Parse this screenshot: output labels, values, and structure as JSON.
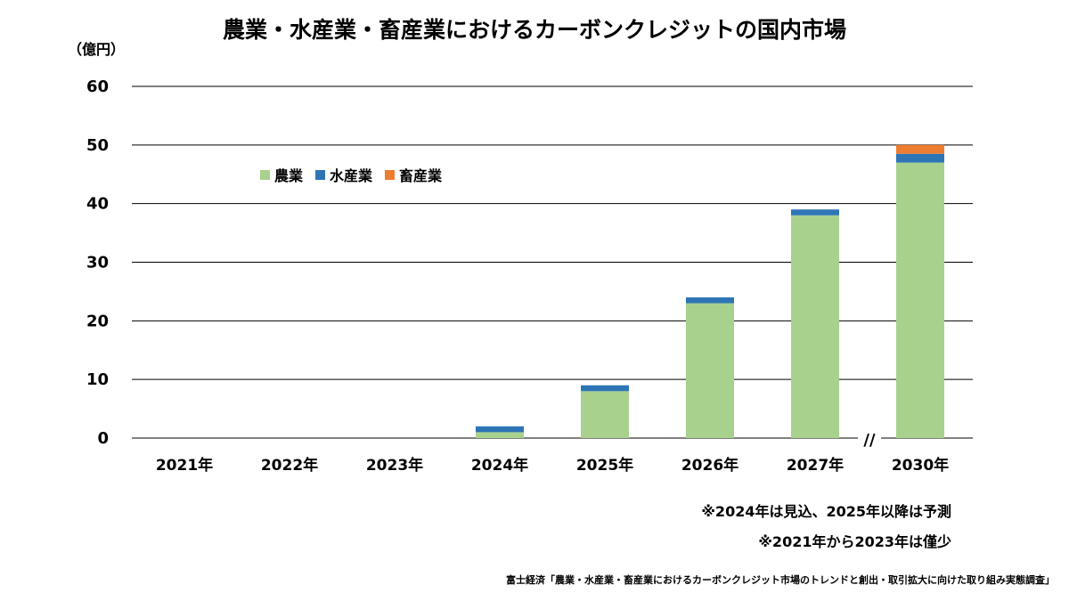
{
  "title": "農業・水産業・畜産業におけるカーボンクレジットの国内市場",
  "unit_label": "（億円）",
  "notes": [
    "※2024年は見込、2025年以降は予測",
    "※2021年から2023年は僅少"
  ],
  "source": "富士経済「農業・水産業・畜産業におけるカーボンクレジット市場のトレンドと創出・取引拡大に向けた取り組み実態調査」",
  "axis_break_mark": "//",
  "chart_data": {
    "type": "bar",
    "stacked": true,
    "title": "農業・水産業・畜産業におけるカーボンクレジットの国内市場",
    "ylabel": "（億円）",
    "xlabel": "",
    "categories": [
      "2021年",
      "2022年",
      "2023年",
      "2024年",
      "2025年",
      "2026年",
      "2027年",
      "2030年"
    ],
    "ylim": [
      0,
      60
    ],
    "yticks": [
      0,
      10,
      20,
      30,
      40,
      50,
      60
    ],
    "grid": true,
    "legend_position": "upper-left",
    "series": [
      {
        "name": "農業",
        "color": "#A9D18E",
        "values": [
          0,
          0,
          0,
          1,
          8,
          23,
          38,
          47
        ]
      },
      {
        "name": "水産業",
        "color": "#2E75B6",
        "values": [
          0,
          0,
          0,
          1,
          1,
          1,
          1,
          1.5
        ]
      },
      {
        "name": "畜産業",
        "color": "#ED7D31",
        "values": [
          0,
          0,
          0,
          0,
          0,
          0,
          0,
          1.5
        ]
      }
    ]
  }
}
